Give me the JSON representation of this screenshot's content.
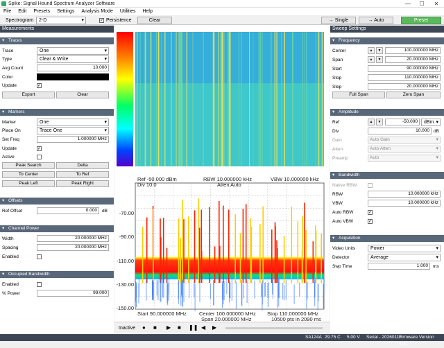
{
  "app": {
    "title": "Spike: Signal Hound Spectrum Analyzer Software",
    "min": "—",
    "max": "☐",
    "close": "✕"
  },
  "menu": [
    "File",
    "Edit",
    "Presets",
    "Settings",
    "Analysis Mode",
    "Utilities",
    "Help"
  ],
  "toolbar": {
    "spectrogram_label": "Spectrogram",
    "spectrogram_value": "2-D",
    "persistence_label": "Persistence",
    "clear": "Clear",
    "single": "Single",
    "auto": "Auto",
    "preset": "Preset"
  },
  "left": {
    "title": "Measurements",
    "traces": {
      "header": "Traces",
      "trace_label": "Trace",
      "trace_value": "One",
      "type_label": "Type",
      "type_value": "Clear & Write",
      "avg_label": "Avg Count",
      "avg_value": "10.000",
      "color_label": "Color",
      "update_label": "Update",
      "export": "Export",
      "clear": "Clear"
    },
    "markers": {
      "header": "Markers",
      "marker_label": "Marker",
      "marker_value": "One",
      "place_label": "Place On",
      "place_value": "Trace One",
      "setfreq_label": "Set Freq",
      "setfreq_value": "1.000000 MHz",
      "update_label": "Update",
      "active_label": "Active",
      "peak_search": "Peak Search",
      "delta": "Delta",
      "to_center": "To Center",
      "to_ref": "To Ref",
      "peak_left": "Peak Left",
      "peak_right": "Peak Right"
    },
    "offsets": {
      "header": "Offsets",
      "ref_label": "Ref Offset",
      "ref_value": "0.000",
      "ref_unit": "dB"
    },
    "channel": {
      "header": "Channel Power",
      "width_label": "Width",
      "width_value": "20.000000 MHz",
      "spacing_label": "Spacing",
      "spacing_value": "20.000000 MHz",
      "enabled_label": "Enabled"
    },
    "obw": {
      "header": "Occupied Bandwidth",
      "enabled_label": "Enabled",
      "power_label": "% Power",
      "power_value": "99.000"
    }
  },
  "right": {
    "title": "Sweep Settings",
    "freq": {
      "header": "Frequency",
      "center_label": "Center",
      "center_value": "100.000000 MHz",
      "span_label": "Span",
      "span_value": "20.000000 MHz",
      "start_label": "Start",
      "start_value": "90.000000 MHz",
      "stop_label": "Stop",
      "stop_value": "110.000000 MHz",
      "step_label": "Step",
      "step_value": "20.000000 MHz",
      "full_span": "Full Span",
      "zero_span": "Zero Span"
    },
    "amp": {
      "header": "Amplitude",
      "ref_label": "Ref",
      "ref_value": "-50.000",
      "ref_unit": "dBm",
      "div_label": "Div",
      "div_value": "10.000",
      "div_unit": "dB",
      "gain_label": "Gain",
      "gain_value": "Auto Gain",
      "atten_label": "Atten",
      "atten_value": "Auto Atten",
      "preamp_label": "Preamp",
      "preamp_value": "Auto"
    },
    "bw": {
      "header": "Bandwidth",
      "native_label": "Native RBW",
      "rbw_label": "RBW",
      "rbw_value": "10.000000 kHz",
      "vbw_label": "VBW",
      "vbw_value": "10.000000 kHz",
      "autorbw_label": "Auto RBW",
      "autovbw_label": "Auto VBW"
    },
    "acq": {
      "header": "Acquisition",
      "units_label": "Video Units",
      "units_value": "Power",
      "det_label": "Detector",
      "det_value": "Average",
      "swp_label": "Swp Time",
      "swp_value": "1.000",
      "swp_unit": "ms"
    }
  },
  "plot": {
    "ref": "Ref -50.000 dBm",
    "div": "Div 10.0",
    "rbw": "RBW 10.000000 kHz",
    "atten": "Atten Auto",
    "vbw": "VBW 10.000000 kHz",
    "start": "Start 90.000000 MHz",
    "center": "Center 100.000000 MHz",
    "span": "Span 20.000000 MHz",
    "stop": "Stop 110.000000 MHz",
    "pts": "10500 pts in 2090 ms",
    "yticks": [
      "-70.00",
      "-90.00",
      "-110.00",
      "-130.00",
      "-150.00"
    ]
  },
  "playback": {
    "status": "Inactive"
  },
  "statusbar": {
    "device": "SA124A",
    "temp": "29.75 C",
    "volt": "5.00 V",
    "serial": "Serial - 20260118",
    "firmware": "Firmware Version 3.03"
  },
  "colors": {
    "header": "#3c4654",
    "subheader": "#59677a",
    "preset": "#5cb85c"
  }
}
